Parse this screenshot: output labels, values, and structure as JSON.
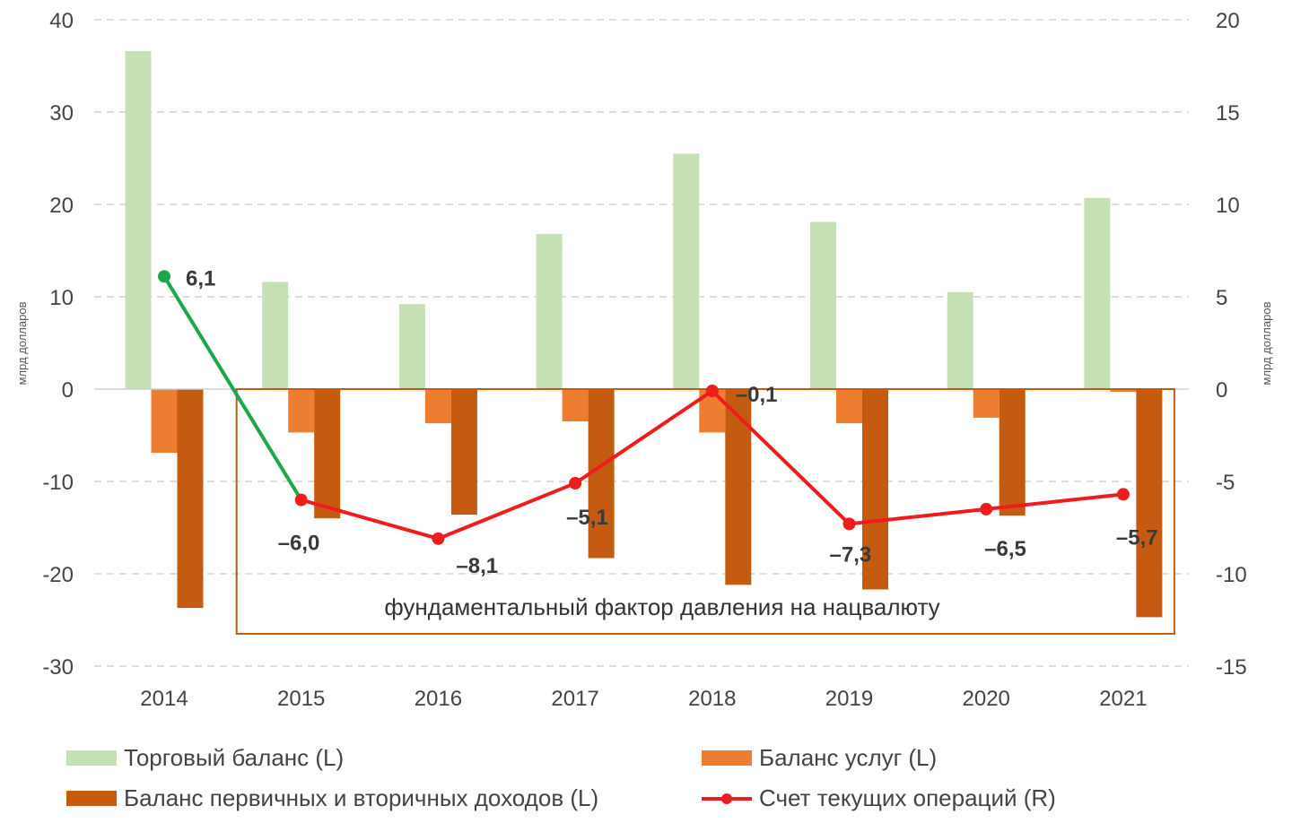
{
  "chart_data": {
    "type": "bar+line",
    "categories": [
      "2014",
      "2015",
      "2016",
      "2017",
      "2018",
      "2019",
      "2020",
      "2021"
    ],
    "left_axis": {
      "label": "млрд долларов",
      "ylim": [
        -30,
        40
      ],
      "ticks": [
        "40",
        "30",
        "20",
        "10",
        "0",
        "-10",
        "-20",
        "-30"
      ],
      "tick_values": [
        40,
        30,
        20,
        10,
        0,
        -10,
        -20,
        -30
      ]
    },
    "right_axis": {
      "label": "млрд долларов",
      "ylim": [
        -15,
        20
      ],
      "ticks": [
        "20",
        "15",
        "10",
        "5",
        "0",
        "-5",
        "-10",
        "-15"
      ],
      "tick_values": [
        20,
        15,
        10,
        5,
        0,
        -5,
        -10,
        -15
      ]
    },
    "grid": "horizontal dashed",
    "series": [
      {
        "name": "Торговый баланс (L)",
        "axis": "left",
        "kind": "bar",
        "color": "#c5e0b4",
        "values": [
          36.6,
          11.6,
          9.2,
          16.8,
          25.5,
          18.1,
          10.5,
          20.7
        ]
      },
      {
        "name": "Баланс услуг (L)",
        "axis": "left",
        "kind": "bar",
        "color": "#ed7d31",
        "values": [
          -6.9,
          -4.7,
          -3.7,
          -3.5,
          -4.7,
          -3.7,
          -3.1,
          -0.3
        ]
      },
      {
        "name": "Баланс первичных и вторичных доходов (L)",
        "axis": "left",
        "kind": "bar",
        "color": "#c55a11",
        "values": [
          -23.7,
          -14.0,
          -13.6,
          -18.3,
          -21.2,
          -21.7,
          -13.7,
          -24.7
        ]
      },
      {
        "name": "Счет текущих операций (R)",
        "axis": "right",
        "kind": "line",
        "color": "#ee1c1c",
        "first_segment_color": "#1ea64a",
        "values": [
          6.1,
          -6.0,
          -8.1,
          -5.1,
          -0.1,
          -7.3,
          -6.5,
          -5.7
        ],
        "labels": [
          "6,1",
          "–6,0",
          "–8,1",
          "–5,1",
          "–0,1",
          "–7,3",
          "–6,5",
          "–5,7"
        ]
      }
    ],
    "annotation": {
      "text": "фундаментальный фактор давления на нацвалюту",
      "from_category": "2015",
      "to_category": "2021",
      "from_value": 0,
      "to_value": -26.5
    },
    "legend_position": "bottom"
  },
  "legend": [
    {
      "label": "Торговый баланс (L)",
      "color": "#c5e0b4"
    },
    {
      "label": "Баланс услуг (L)",
      "color": "#ed7d31"
    },
    {
      "label": "Баланс первичных и вторичных доходов (L)",
      "color": "#c55a11"
    },
    {
      "label": "Счет текущих операций (R)",
      "color": "#ee1c1c"
    }
  ]
}
